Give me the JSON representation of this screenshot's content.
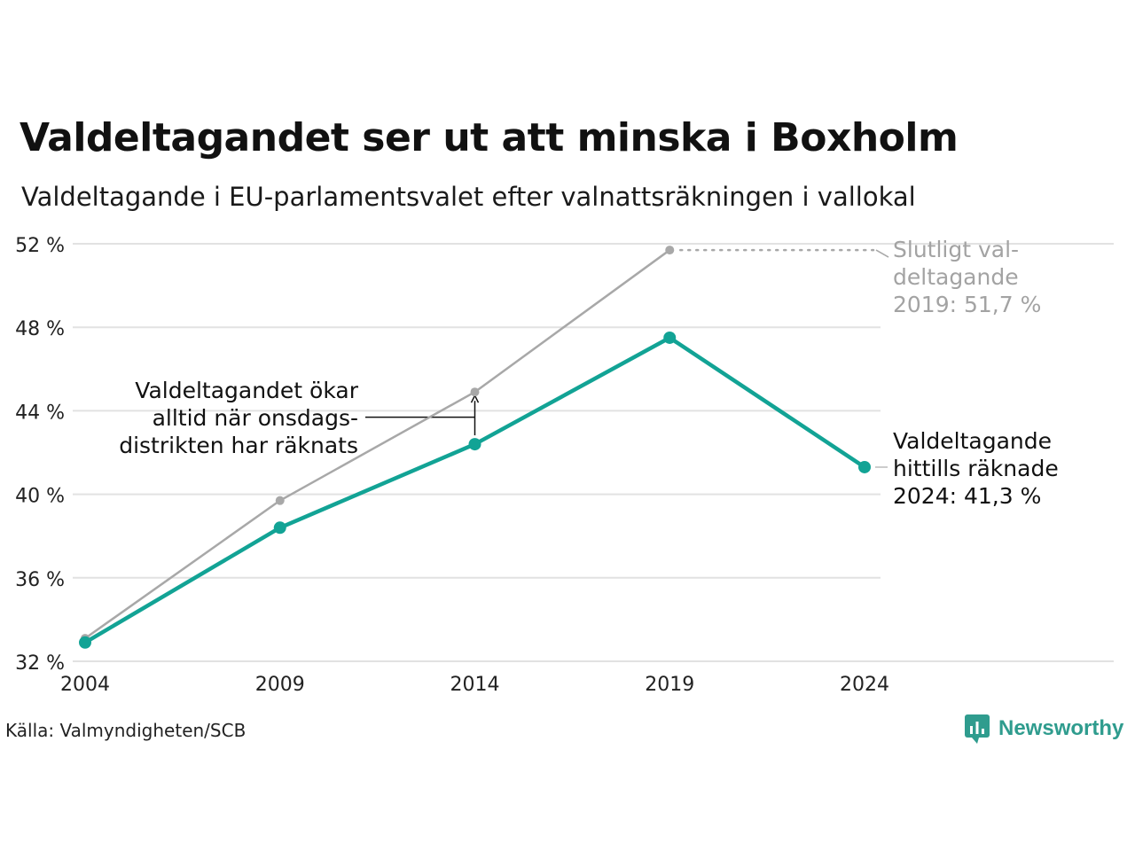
{
  "title": "Valdeltagandet ser ut att minska i Boxholm",
  "subtitle": "Valdeltagande i EU-parlamentsvalet efter valnattsräkningen i vallokal",
  "source": "Källa: Valmyndigheten/SCB",
  "brand": "Newsworthy",
  "annotations": {
    "left": [
      "Valdeltagandet ökar",
      "alltid när onsdags-",
      "distrikten har räknats"
    ],
    "final": [
      "Slutligt val-",
      "deltagande",
      "2019: 51,7 %"
    ],
    "current": [
      "Valdeltagande",
      "hittills räknade",
      "2024: 41,3 %"
    ]
  },
  "colors": {
    "teal": "#12a395",
    "gray": "#a8a8a8",
    "grid": "#e2e2e2",
    "brand": "#2f9c8e"
  },
  "chart_data": {
    "type": "line",
    "x": [
      2004,
      2009,
      2014,
      2019,
      2024
    ],
    "xticks": [
      "2004",
      "2009",
      "2014",
      "2019",
      "2024"
    ],
    "ylim": [
      32,
      52
    ],
    "yticks": [
      "32 %",
      "36 %",
      "40 %",
      "44 %",
      "48 %",
      "52 %"
    ],
    "yticks_values": [
      32,
      36,
      40,
      44,
      48,
      52
    ],
    "series": [
      {
        "values": [
          33.1,
          39.7,
          44.9,
          51.7,
          null
        ],
        "color": "#a8a8a8"
      },
      {
        "values": [
          32.9,
          38.4,
          42.4,
          47.5,
          41.3
        ],
        "color": "#12a395"
      }
    ]
  }
}
